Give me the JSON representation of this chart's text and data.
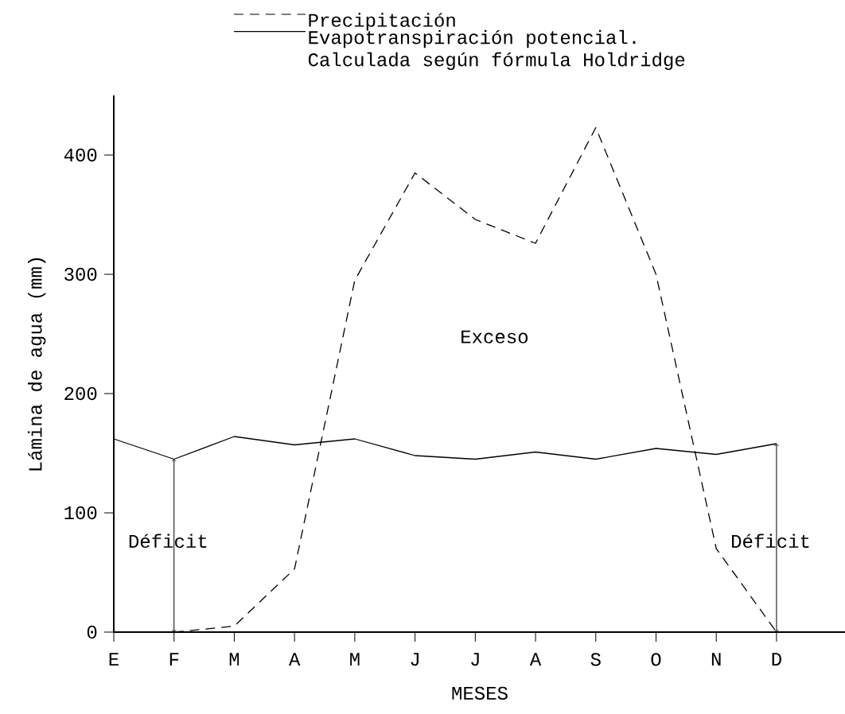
{
  "chart_data": {
    "type": "line",
    "xlabel": "MESES",
    "ylabel": "Lámina de agua (mm)",
    "categories": [
      "E",
      "F",
      "M",
      "A",
      "M",
      "J",
      "J",
      "A",
      "S",
      "O",
      "N",
      "D"
    ],
    "series": [
      {
        "name": "Precipitación",
        "color": "#000000",
        "line_style": "dashed",
        "values": [
          null,
          0,
          5,
          53,
          295,
          385,
          346,
          326,
          423,
          300,
          70,
          0
        ]
      },
      {
        "name": "Evapotranspiración potencial. Calculada según fórmula Holdridge",
        "color": "#000000",
        "line_style": "solid",
        "values": [
          162,
          145,
          164,
          157,
          162,
          148,
          145,
          151,
          145,
          154,
          149,
          158
        ]
      }
    ],
    "ylim": [
      0,
      450
    ],
    "yticks": [
      0,
      100,
      200,
      300,
      400
    ],
    "legend": "top",
    "annotations": [
      "Exceso",
      "Déficit",
      "Déficit"
    ]
  }
}
